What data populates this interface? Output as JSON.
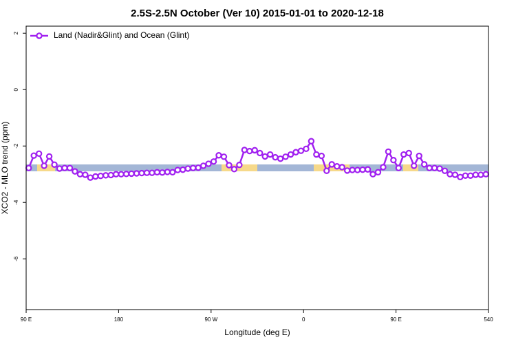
{
  "chart_data": {
    "type": "line",
    "title": "2.5S-2.5N October (Ver 10)   2015-01-01 to 2020-12-18",
    "xlabel": "Longitude (deg E)",
    "ylabel": "XCO2 - MLO trend (ppm)",
    "xlim": [
      90,
      540
    ],
    "ylim": [
      -7.8,
      2.25
    ],
    "xticks": [
      {
        "value": 90,
        "label": "90 E"
      },
      180,
      {
        "value": 270,
        "label": "90 W"
      },
      {
        "value": 360,
        "label": "0"
      },
      {
        "value": 450,
        "label": "90 E"
      },
      540
    ],
    "yticks": [
      2,
      0,
      -2,
      -4,
      -6
    ],
    "legend": "upper left",
    "x": [
      92.5,
      97.5,
      102.5,
      107.5,
      112.5,
      117.5,
      122.5,
      127.5,
      132.5,
      137.5,
      142.5,
      147.5,
      152.5,
      157.5,
      162.5,
      167.5,
      172.5,
      177.5,
      182.5,
      187.5,
      192.5,
      197.5,
      202.5,
      207.5,
      212.5,
      217.5,
      222.5,
      227.5,
      232.5,
      237.5,
      242.5,
      247.5,
      252.5,
      257.5,
      262.5,
      267.5,
      272.5,
      277.5,
      282.5,
      287.5,
      292.5,
      297.5,
      302.5,
      307.5,
      312.5,
      317.5,
      322.5,
      327.5,
      332.5,
      337.5,
      342.5,
      347.5,
      352.5,
      357.5,
      362.5,
      367.5,
      372.5,
      377.5,
      382.5,
      387.5,
      392.5,
      397.5,
      402.5,
      407.5,
      412.5,
      417.5,
      422.5,
      427.5,
      432.5,
      437.5,
      442.5,
      447.5,
      452.5,
      457.5,
      462.5,
      467.5,
      472.5,
      477.5,
      482.5,
      487.5,
      492.5,
      497.5,
      502.5,
      507.5,
      512.5,
      517.5,
      522.5,
      527.5,
      532.5,
      537.5
    ],
    "series": [
      {
        "name": "Land (Nadir&Glint) and Ocean (Glint)",
        "color": "#a020f0",
        "values": [
          -2.78,
          -2.34,
          -2.27,
          -2.7,
          -2.37,
          -2.66,
          -2.8,
          -2.78,
          -2.78,
          -2.9,
          -3.0,
          -3.02,
          -3.12,
          -3.08,
          -3.06,
          -3.04,
          -3.03,
          -3.0,
          -3.0,
          -2.99,
          -2.98,
          -2.97,
          -2.96,
          -2.95,
          -2.95,
          -2.93,
          -2.94,
          -2.92,
          -2.93,
          -2.85,
          -2.84,
          -2.8,
          -2.78,
          -2.77,
          -2.7,
          -2.63,
          -2.55,
          -2.33,
          -2.38,
          -2.68,
          -2.82,
          -2.67,
          -2.14,
          -2.18,
          -2.15,
          -2.25,
          -2.37,
          -2.3,
          -2.4,
          -2.45,
          -2.38,
          -2.3,
          -2.22,
          -2.17,
          -2.1,
          -1.83,
          -2.3,
          -2.35,
          -2.88,
          -2.65,
          -2.72,
          -2.75,
          -2.87,
          -2.85,
          -2.85,
          -2.84,
          -2.83,
          -3.0,
          -2.93,
          -2.75,
          -2.2,
          -2.5,
          -2.78,
          -2.3,
          -2.25,
          -2.7,
          -2.35,
          -2.65,
          -2.78,
          -2.78,
          -2.8,
          -2.88,
          -3.0,
          -3.02,
          -3.1,
          -3.05,
          -3.05,
          -3.02,
          -3.02,
          -3.0
        ]
      }
    ]
  }
}
